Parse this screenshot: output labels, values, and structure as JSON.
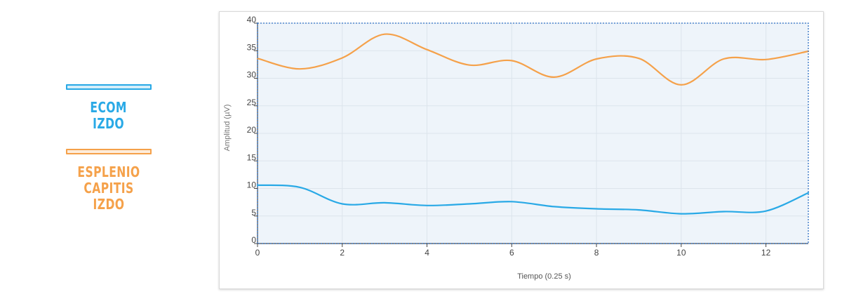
{
  "legend": {
    "items": [
      {
        "line1": "ECOM",
        "line2": "IZDO",
        "color": "#29A9E6"
      },
      {
        "line1": "ESPLENIO CAPITIS",
        "line2": "IZDO",
        "color": "#F5A14A"
      }
    ]
  },
  "chart_data": {
    "type": "line",
    "title": "",
    "xlabel": "Tiempo (0.25 s)",
    "ylabel": "Amplitud (µV)",
    "xlim": [
      0,
      13
    ],
    "ylim": [
      0,
      40
    ],
    "x_ticks": [
      0,
      2,
      4,
      6,
      8,
      10,
      12
    ],
    "y_ticks": [
      0,
      5,
      10,
      15,
      20,
      25,
      30,
      35,
      40
    ],
    "grid": true,
    "x": [
      0,
      1,
      2,
      3,
      4,
      5,
      6,
      7,
      8,
      9,
      10,
      11,
      12,
      13
    ],
    "series": [
      {
        "color": "#F5A14A",
        "values": [
          33.6,
          31.7,
          33.7,
          38.0,
          35.2,
          32.4,
          33.2,
          30.2,
          33.5,
          33.6,
          28.8,
          33.5,
          33.4,
          34.9
        ]
      },
      {
        "color": "#29A9E6",
        "values": [
          10.6,
          10.2,
          7.2,
          7.4,
          6.9,
          7.2,
          7.6,
          6.7,
          6.3,
          6.1,
          5.4,
          5.8,
          5.9,
          9.2
        ]
      }
    ]
  }
}
